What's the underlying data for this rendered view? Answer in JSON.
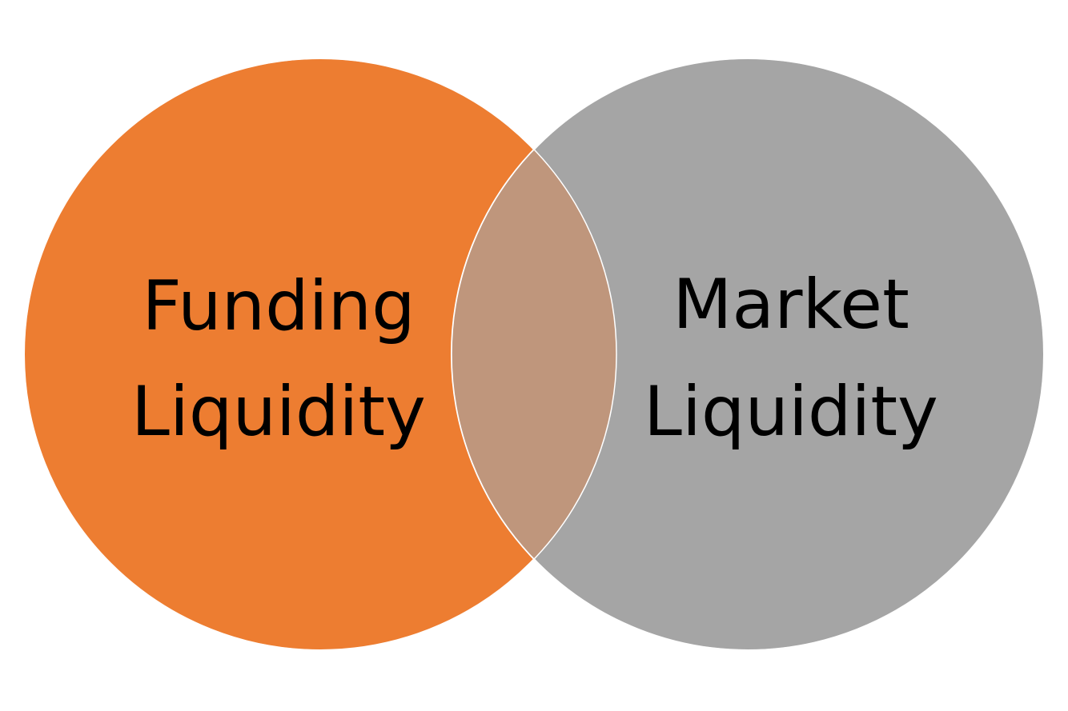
{
  "diagram": {
    "type": "venn",
    "sets": [
      {
        "id": "funding",
        "label_lines": [
          "Funding",
          "Liquidity"
        ],
        "color": "#ED7D31"
      },
      {
        "id": "market",
        "label_lines": [
          "Market",
          "Liquidity"
        ],
        "color": "#A5A5A5"
      }
    ],
    "overlap": {
      "color": "#BF967C"
    },
    "outline_color": "#FFFFFF"
  }
}
